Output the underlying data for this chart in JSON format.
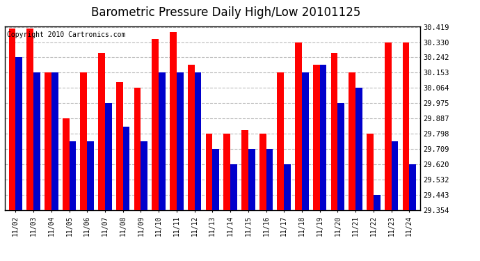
{
  "title": "Barometric Pressure Daily High/Low 20101125",
  "copyright": "Copyright 2010 Cartronics.com",
  "dates": [
    "11/02",
    "11/03",
    "11/04",
    "11/05",
    "11/06",
    "11/07",
    "11/08",
    "11/09",
    "11/10",
    "11/11",
    "11/12",
    "11/13",
    "11/14",
    "11/15",
    "11/16",
    "11/17",
    "11/18",
    "11/19",
    "11/20",
    "11/21",
    "11/22",
    "11/23",
    "11/24"
  ],
  "highs": [
    30.41,
    30.41,
    30.153,
    29.887,
    30.153,
    30.27,
    30.1,
    30.064,
    30.35,
    30.39,
    30.2,
    29.798,
    29.798,
    29.82,
    29.798,
    30.153,
    30.33,
    30.2,
    30.27,
    30.153,
    29.798,
    30.33,
    30.33
  ],
  "lows": [
    30.242,
    30.153,
    30.153,
    29.753,
    29.753,
    29.975,
    29.84,
    29.753,
    30.153,
    30.153,
    30.153,
    29.709,
    29.62,
    29.709,
    29.709,
    29.62,
    30.153,
    30.2,
    29.975,
    30.064,
    29.443,
    29.753,
    29.62
  ],
  "ymin": 29.354,
  "ymax": 30.419,
  "yticks": [
    30.419,
    30.33,
    30.242,
    30.153,
    30.064,
    29.975,
    29.887,
    29.798,
    29.709,
    29.62,
    29.532,
    29.443,
    29.354
  ],
  "bar_width": 0.38,
  "high_color": "#ff0000",
  "low_color": "#0000cc",
  "bg_color": "#ffffff",
  "grid_color": "#aaaaaa",
  "title_fontsize": 12,
  "copyright_fontsize": 7
}
